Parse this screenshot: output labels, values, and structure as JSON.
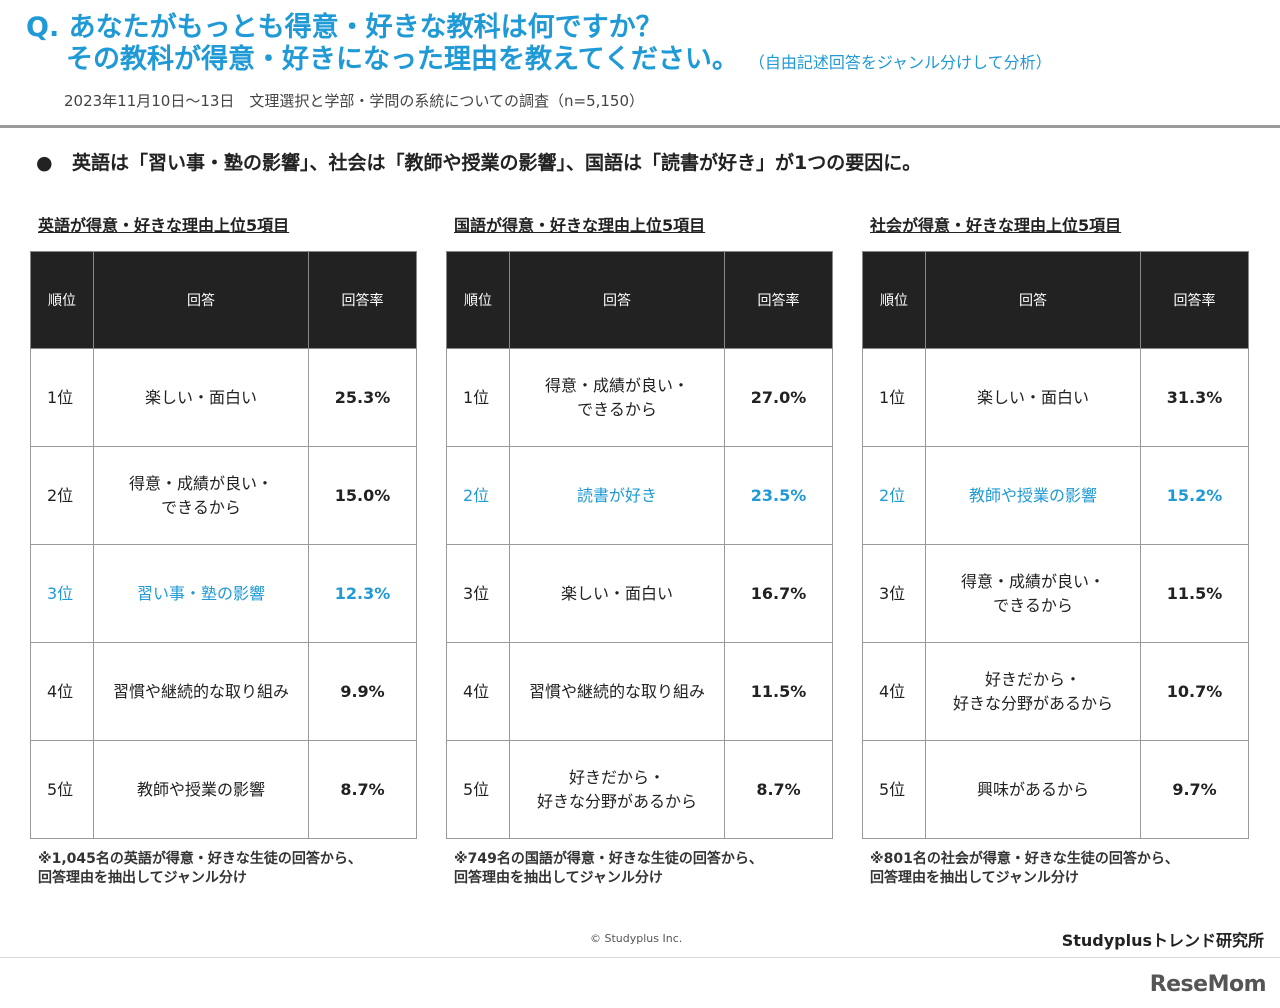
{
  "header": {
    "question_line1": "Q. あなたがもっとも得意・好きな教科は何ですか？",
    "question_line2": "その教科が得意・好きになった理由を教えてください。",
    "question_note": "（自由記述回答をジャンル分けして分析）",
    "survey_meta": "2023年11月10日〜13日　文理選択と学部・学問の系統についての調査（n=5,150）"
  },
  "finding": {
    "bullet": "●",
    "text": "英語は「習い事・塾の影響」、社会は「教師や授業の影響」、国語は「読書が好き」が1つの要因に。"
  },
  "colors": {
    "accent": "#1f9ad6",
    "table_header_bg": "#222222"
  },
  "columns": {
    "rank": "順位",
    "response": "回答",
    "rate": "回答率"
  },
  "panels": [
    {
      "title": "英語が得意・好きな理由上位5項目",
      "rows": [
        {
          "rank": "1位",
          "response": [
            "楽しい・面白い"
          ],
          "rate": "25.3%",
          "highlight": false
        },
        {
          "rank": "2位",
          "response": [
            "得意・成績が良い・",
            "できるから"
          ],
          "rate": "15.0%",
          "highlight": false
        },
        {
          "rank": "3位",
          "response": [
            "習い事・塾の影響"
          ],
          "rate": "12.3%",
          "highlight": true
        },
        {
          "rank": "4位",
          "response": [
            "習慣や継続的な取り組み"
          ],
          "rate": "9.9%",
          "highlight": false
        },
        {
          "rank": "5位",
          "response": [
            "教師や授業の影響"
          ],
          "rate": "8.7%",
          "highlight": false
        }
      ],
      "note_line1": "※1,045名の英語が得意・好きな生徒の回答から、",
      "note_line2": "回答理由を抽出してジャンル分け"
    },
    {
      "title": "国語が得意・好きな理由上位5項目",
      "rows": [
        {
          "rank": "1位",
          "response": [
            "得意・成績が良い・",
            "できるから"
          ],
          "rate": "27.0%",
          "highlight": false
        },
        {
          "rank": "2位",
          "response": [
            "読書が好き"
          ],
          "rate": "23.5%",
          "highlight": true
        },
        {
          "rank": "3位",
          "response": [
            "楽しい・面白い"
          ],
          "rate": "16.7%",
          "highlight": false
        },
        {
          "rank": "4位",
          "response": [
            "習慣や継続的な取り組み"
          ],
          "rate": "11.5%",
          "highlight": false
        },
        {
          "rank": "5位",
          "response": [
            "好きだから・",
            "好きな分野があるから"
          ],
          "rate": "8.7%",
          "highlight": false
        }
      ],
      "note_line1": "※749名の国語が得意・好きな生徒の回答から、",
      "note_line2": "回答理由を抽出してジャンル分け"
    },
    {
      "title": "社会が得意・好きな理由上位5項目",
      "rows": [
        {
          "rank": "1位",
          "response": [
            "楽しい・面白い"
          ],
          "rate": "31.3%",
          "highlight": false
        },
        {
          "rank": "2位",
          "response": [
            "教師や授業の影響"
          ],
          "rate": "15.2%",
          "highlight": true
        },
        {
          "rank": "3位",
          "response": [
            "得意・成績が良い・",
            "できるから"
          ],
          "rate": "11.5%",
          "highlight": false
        },
        {
          "rank": "4位",
          "response": [
            "好きだから・",
            "好きな分野があるから"
          ],
          "rate": "10.7%",
          "highlight": false
        },
        {
          "rank": "5位",
          "response": [
            "興味があるから"
          ],
          "rate": "9.7%",
          "highlight": false
        }
      ],
      "note_line1": "※801名の社会が得意・好きな生徒の回答から、",
      "note_line2": "回答理由を抽出してジャンル分け"
    }
  ],
  "footer": {
    "copyright": "© Studyplus Inc.",
    "org": "Studyplusトレンド研究所",
    "watermark": "ReseMom"
  }
}
